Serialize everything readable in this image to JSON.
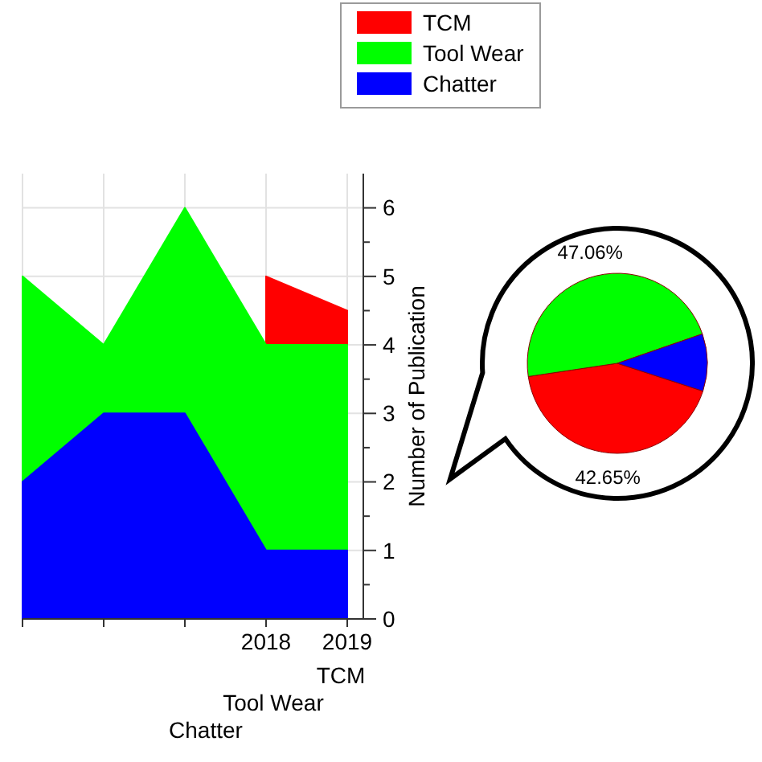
{
  "chart_data": [
    {
      "type": "area",
      "categories": [
        null,
        null,
        null,
        "2018",
        "2019"
      ],
      "series": [
        {
          "name": "TCM",
          "color": "#ff0000",
          "values": [
            null,
            null,
            null,
            5,
            4.5
          ]
        },
        {
          "name": "Tool Wear",
          "color": "#00ff00",
          "values": [
            5,
            4,
            6,
            4,
            4
          ]
        },
        {
          "name": "Chatter",
          "color": "#0000ff",
          "values": [
            2,
            3,
            3,
            1,
            1
          ]
        }
      ],
      "ylabel": "Number of Publication",
      "ylim": [
        0,
        6.5
      ],
      "yticks": [
        0,
        {
          "value": 0.5,
          "label": null
        },
        1,
        {
          "value": 1.5,
          "label": null
        },
        2,
        {
          "value": 2.5,
          "label": null
        },
        3,
        {
          "value": 3.5,
          "label": null
        },
        4,
        {
          "value": 4.5,
          "label": null
        },
        5,
        {
          "value": 5.5,
          "label": null
        },
        6
      ],
      "grid": true,
      "legend": "top"
    },
    {
      "type": "pie",
      "categories": [
        null,
        null,
        null
      ],
      "values": [
        42.65,
        47.06,
        10.29
      ],
      "colors": [
        "#ff0000",
        "#00ff00",
        "#0000ff"
      ],
      "value_labels": [
        "42.65%",
        "47.06%",
        null
      ]
    }
  ]
}
